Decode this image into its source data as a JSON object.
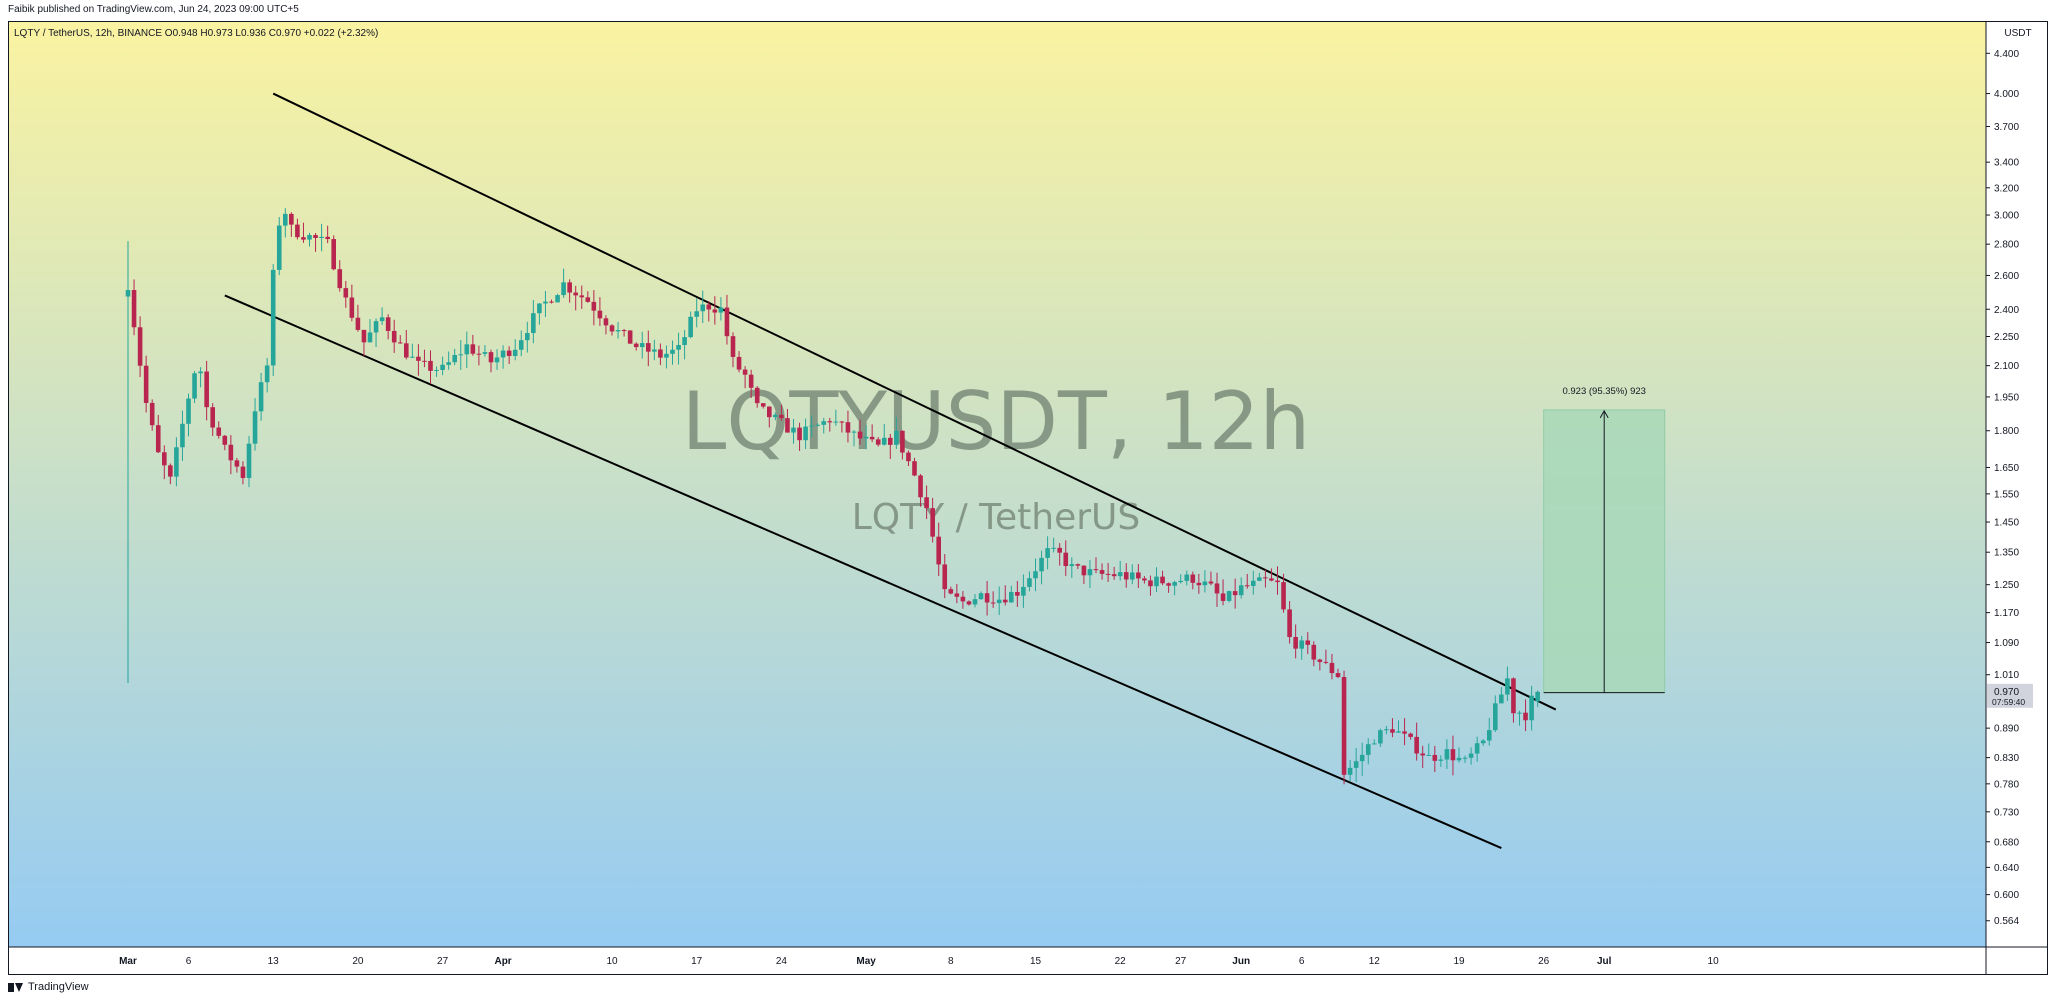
{
  "header": {
    "text": "Faibik published on TradingView.com, Jun 24, 2023 09:00 UTC+5"
  },
  "footer": {
    "brand": "TradingView"
  },
  "chart_data": {
    "type": "candlestick",
    "symbol_line": "LQTY / TetherUS, 12h, BINANCE  O0.948  H0.973  L0.936  C0.970  +0.022 (+2.32%)",
    "open": 0.948,
    "high": 0.973,
    "low": 0.936,
    "close": 0.97,
    "change": "+0.022 (+2.32%)",
    "watermark_title": "LQTYUSDT, 12h",
    "watermark_subtitle": "LQTY / TetherUS",
    "currency": "USDT",
    "y_scale": "log",
    "ylim": [
      0.53,
      4.75
    ],
    "y_ticks": [
      4.4,
      4.0,
      3.7,
      3.4,
      3.2,
      3.0,
      2.8,
      2.6,
      2.4,
      2.25,
      2.1,
      1.95,
      1.8,
      1.65,
      1.55,
      1.45,
      1.35,
      1.25,
      1.17,
      1.09,
      1.01,
      0.97,
      0.89,
      0.83,
      0.78,
      0.73,
      0.68,
      0.64,
      0.6,
      0.564
    ],
    "y_tick_labels": [
      "4.400",
      "4.000",
      "3.700",
      "3.400",
      "3.200",
      "3.000",
      "2.800",
      "2.600",
      "2.400",
      "2.250",
      "2.100",
      "1.950",
      "1.800",
      "1.650",
      "1.550",
      "1.450",
      "1.350",
      "1.250",
      "1.170",
      "1.090",
      "1.010",
      "0.970",
      "0.890",
      "0.830",
      "0.780",
      "0.730",
      "0.680",
      "0.640",
      "0.600",
      "0.564"
    ],
    "last_price_label": "0.970",
    "countdown_label": "07:59:40",
    "x_domain_days": [
      -3,
      129
    ],
    "x_ticks": [
      {
        "day": 0,
        "label": "Mar",
        "bold": true
      },
      {
        "day": 5,
        "label": "6",
        "bold": false
      },
      {
        "day": 12,
        "label": "13",
        "bold": false
      },
      {
        "day": 19,
        "label": "20",
        "bold": false
      },
      {
        "day": 26,
        "label": "27",
        "bold": false
      },
      {
        "day": 31,
        "label": "Apr",
        "bold": true
      },
      {
        "day": 40,
        "label": "10",
        "bold": false
      },
      {
        "day": 47,
        "label": "17",
        "bold": false
      },
      {
        "day": 54,
        "label": "24",
        "bold": false
      },
      {
        "day": 61,
        "label": "May",
        "bold": true
      },
      {
        "day": 68,
        "label": "8",
        "bold": false
      },
      {
        "day": 75,
        "label": "15",
        "bold": false
      },
      {
        "day": 82,
        "label": "22",
        "bold": false
      },
      {
        "day": 87,
        "label": "27",
        "bold": false
      },
      {
        "day": 92,
        "label": "Jun",
        "bold": true
      },
      {
        "day": 97,
        "label": "6",
        "bold": false
      },
      {
        "day": 103,
        "label": "12",
        "bold": false
      },
      {
        "day": 110,
        "label": "19",
        "bold": false
      },
      {
        "day": 117,
        "label": "26",
        "bold": false
      },
      {
        "day": 122,
        "label": "Jul",
        "bold": true
      },
      {
        "day": 131,
        "label": "10",
        "bold": false
      }
    ],
    "keypoints": [
      [
        0,
        2.55
      ],
      [
        1.5,
        1.92
      ],
      [
        2.5,
        1.7
      ],
      [
        3.5,
        1.6
      ],
      [
        5,
        1.95
      ],
      [
        5.8,
        2.15
      ],
      [
        6.5,
        1.9
      ],
      [
        8,
        1.72
      ],
      [
        9.5,
        1.62
      ],
      [
        10.5,
        1.9
      ],
      [
        11.5,
        2.1
      ],
      [
        12,
        2.6
      ],
      [
        12.7,
        3.1
      ],
      [
        13.5,
        2.9
      ],
      [
        15,
        2.85
      ],
      [
        16.5,
        2.8
      ],
      [
        18,
        2.45
      ],
      [
        19.5,
        2.22
      ],
      [
        21,
        2.35
      ],
      [
        22.5,
        2.2
      ],
      [
        24,
        2.1
      ],
      [
        26,
        2.08
      ],
      [
        28,
        2.2
      ],
      [
        30,
        2.12
      ],
      [
        32,
        2.2
      ],
      [
        34,
        2.4
      ],
      [
        36,
        2.55
      ],
      [
        38,
        2.45
      ],
      [
        40,
        2.3
      ],
      [
        42,
        2.2
      ],
      [
        44,
        2.15
      ],
      [
        45.5,
        2.18
      ],
      [
        47,
        2.4
      ],
      [
        48,
        2.42
      ],
      [
        49,
        2.4
      ],
      [
        50,
        2.12
      ],
      [
        51,
        2.05
      ],
      [
        52,
        1.9
      ],
      [
        54,
        1.83
      ],
      [
        55.5,
        1.78
      ],
      [
        57,
        1.82
      ],
      [
        58,
        1.85
      ],
      [
        60,
        1.78
      ],
      [
        62,
        1.73
      ],
      [
        63.5,
        1.78
      ],
      [
        65,
        1.62
      ],
      [
        66,
        1.5
      ],
      [
        67.5,
        1.22
      ],
      [
        69,
        1.2
      ],
      [
        70.5,
        1.22
      ],
      [
        72,
        1.21
      ],
      [
        73.5,
        1.23
      ],
      [
        75,
        1.3
      ],
      [
        76,
        1.35
      ],
      [
        77,
        1.34
      ],
      [
        78,
        1.3
      ],
      [
        80,
        1.28
      ],
      [
        82,
        1.28
      ],
      [
        84,
        1.26
      ],
      [
        86,
        1.26
      ],
      [
        88,
        1.27
      ],
      [
        89.5,
        1.24
      ],
      [
        90.5,
        1.2
      ],
      [
        92,
        1.24
      ],
      [
        94,
        1.26
      ],
      [
        95,
        1.25
      ],
      [
        96,
        1.1
      ],
      [
        97.5,
        1.07
      ],
      [
        99,
        1.03
      ],
      [
        100,
        1.01
      ],
      [
        100.5,
        0.8
      ],
      [
        101.5,
        0.82
      ],
      [
        103,
        0.87
      ],
      [
        104.5,
        0.89
      ],
      [
        106,
        0.86
      ],
      [
        107.5,
        0.83
      ],
      [
        109,
        0.84
      ],
      [
        110.5,
        0.82
      ],
      [
        112,
        0.86
      ],
      [
        113,
        0.93
      ],
      [
        114,
        1.0
      ],
      [
        114.5,
        0.93
      ],
      [
        115.5,
        0.92
      ],
      [
        116,
        0.95
      ],
      [
        116.5,
        0.97
      ]
    ],
    "trendlines": [
      {
        "name": "channel-upper",
        "p1": [
          12,
          4.0
        ],
        "p2": [
          118,
          0.93
        ]
      },
      {
        "name": "channel-lower",
        "p1": [
          8,
          2.48
        ],
        "p2": [
          113.5,
          0.67
        ]
      }
    ],
    "projection": {
      "label": "0.923 (95.35%) 923",
      "from_price": 0.968,
      "to_price": 1.891,
      "day_start": 117,
      "day_end": 127,
      "fill": "#a8d8b9",
      "border": "#8fcca6"
    },
    "colors": {
      "up": "#26a69a",
      "down": "#b8254e",
      "bg_top": "#faf3a1",
      "bg_bottom": "#95cbf2",
      "last_price_box": "#d1d4dc",
      "trendline": "#000000"
    }
  }
}
